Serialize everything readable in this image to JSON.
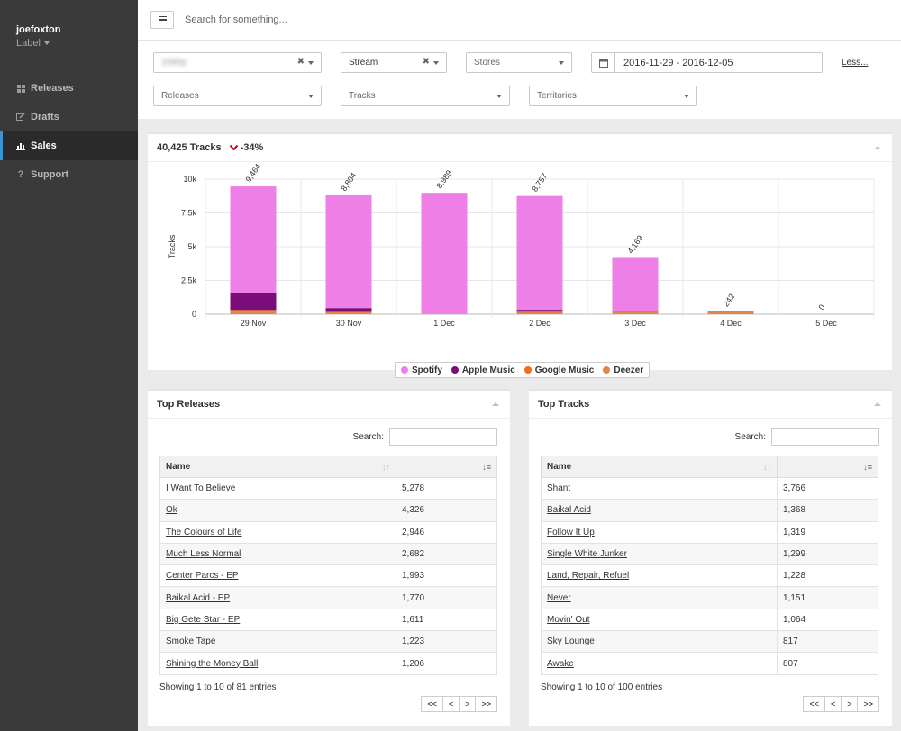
{
  "user": {
    "name": "joefoxton",
    "role": "Label"
  },
  "nav": [
    {
      "label": "Releases",
      "icon": "grid-icon"
    },
    {
      "label": "Drafts",
      "icon": "edit-icon"
    },
    {
      "label": "Sales",
      "icon": "bar-chart-icon",
      "active": true
    },
    {
      "label": "Support",
      "icon": "question-icon"
    }
  ],
  "search": {
    "placeholder": "Search for something..."
  },
  "filters": {
    "label_value": "1080p",
    "type_value": "Stream",
    "stores_placeholder": "Stores",
    "date_range": "2016-11-29 - 2016-12-05",
    "less_link": "Less...",
    "releases_placeholder": "Releases",
    "tracks_placeholder": "Tracks",
    "territories_placeholder": "Territories"
  },
  "summary": {
    "title": "40,425 Tracks",
    "delta": "-34%"
  },
  "chart_data": {
    "type": "bar",
    "stacked": true,
    "categories": [
      "29 Nov",
      "30 Nov",
      "1 Dec",
      "2 Dec",
      "3 Dec",
      "4 Dec",
      "5 Dec"
    ],
    "ylabel": "Tracks",
    "ylim": [
      0,
      10000
    ],
    "yticks": [
      "0",
      "2.5k",
      "5k",
      "7.5k",
      "10k"
    ],
    "ytick_values": [
      0,
      2500,
      5000,
      7500,
      10000
    ],
    "totals": [
      "9,464",
      "8,804",
      "8,989",
      "8,757",
      "4,169",
      "242",
      "0"
    ],
    "series": [
      {
        "name": "Spotify",
        "color": "#ee7fe6",
        "values": [
          7900,
          8350,
          8989,
          8430,
          3970,
          0,
          0
        ]
      },
      {
        "name": "Apple Music",
        "color": "#7a0d7a",
        "values": [
          1250,
          280,
          0,
          90,
          0,
          0,
          0
        ]
      },
      {
        "name": "Google Music",
        "color": "#ef6c1a",
        "values": [
          160,
          90,
          0,
          140,
          60,
          100,
          0
        ]
      },
      {
        "name": "Deezer",
        "color": "#e0874a",
        "values": [
          154,
          84,
          0,
          97,
          139,
          142,
          0
        ]
      }
    ],
    "legend_position": "bottom"
  },
  "top_releases": {
    "title": "Top Releases",
    "search_label": "Search:",
    "col_name": "Name",
    "rows": [
      {
        "name": "I Want To Believe",
        "value": "5,278"
      },
      {
        "name": "Ok",
        "value": "4,326"
      },
      {
        "name": "The Colours of Life",
        "value": "2,946"
      },
      {
        "name": "Much Less Normal",
        "value": "2,682"
      },
      {
        "name": "Center Parcs - EP",
        "value": "1,993"
      },
      {
        "name": "Baikal Acid - EP",
        "value": "1,770"
      },
      {
        "name": "Big Gete Star - EP",
        "value": "1,611"
      },
      {
        "name": "Smoke Tape",
        "value": "1,223"
      },
      {
        "name": "Shining the Money Ball",
        "value": "1,206"
      }
    ],
    "info": "Showing 1 to 10 of 81 entries"
  },
  "top_tracks": {
    "title": "Top Tracks",
    "search_label": "Search:",
    "col_name": "Name",
    "rows": [
      {
        "name": "Shant",
        "value": "3,766"
      },
      {
        "name": "Baikal Acid",
        "value": "1,368"
      },
      {
        "name": "Follow It Up",
        "value": "1,319"
      },
      {
        "name": "Single White Junker",
        "value": "1,299"
      },
      {
        "name": "Land, Repair, Refuel",
        "value": "1,228"
      },
      {
        "name": "Never",
        "value": "1,151"
      },
      {
        "name": "Movin' Out",
        "value": "1,064"
      },
      {
        "name": "Sky Lounge",
        "value": "817"
      },
      {
        "name": "Awake",
        "value": "807"
      }
    ],
    "info": "Showing 1 to 10 of 100 entries"
  },
  "pager": {
    "first": "<<",
    "prev": "<",
    "next": ">",
    "last": ">>"
  }
}
